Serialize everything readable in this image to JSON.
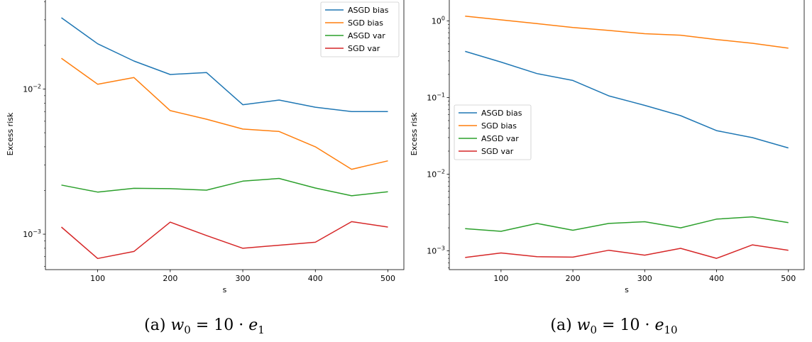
{
  "chart_data": [
    {
      "type": "line",
      "xlabel": "s",
      "ylabel": "Excess risk",
      "yscale": "log",
      "x": [
        50,
        100,
        150,
        200,
        250,
        300,
        350,
        400,
        450,
        500
      ],
      "xticks": [
        100,
        200,
        300,
        400,
        500
      ],
      "xlim": [
        28,
        522
      ],
      "ylim": [
        0.00057,
        0.042
      ],
      "yticks": [
        {
          "value": 0.01,
          "base": "10",
          "exp": "−2"
        },
        {
          "value": 0.001,
          "base": "10",
          "exp": "−3"
        }
      ],
      "legend_position": "top-right",
      "caption": {
        "label": "(a)",
        "math_prefix": "w",
        "math_sub": "0",
        "math_rest": " = 10 · ",
        "math_var": "e",
        "math_var_sub": "1"
      },
      "series": [
        {
          "name": "ASGD bias",
          "color": "#1f77b4",
          "values": [
            0.031,
            0.0205,
            0.0156,
            0.0126,
            0.013,
            0.0078,
            0.0084,
            0.0075,
            0.007,
            0.007
          ]
        },
        {
          "name": "SGD bias",
          "color": "#ff7f0e",
          "values": [
            0.0163,
            0.0108,
            0.012,
            0.0071,
            0.0062,
            0.0053,
            0.0051,
            0.004,
            0.0028,
            0.0032
          ]
        },
        {
          "name": "ASGD var",
          "color": "#2ca02c",
          "values": [
            0.00218,
            0.00195,
            0.00207,
            0.00206,
            0.00201,
            0.00232,
            0.00242,
            0.00208,
            0.00184,
            0.00196
          ]
        },
        {
          "name": "SGD var",
          "color": "#d62728",
          "values": [
            0.00112,
            0.00068,
            0.00076,
            0.00121,
            0.00098,
            0.0008,
            0.00084,
            0.00088,
            0.00122,
            0.00112
          ]
        }
      ]
    },
    {
      "type": "line",
      "xlabel": "s",
      "ylabel": "Excess risk",
      "yscale": "log",
      "x": [
        50,
        100,
        150,
        200,
        250,
        300,
        350,
        400,
        450,
        500
      ],
      "xticks": [
        100,
        200,
        300,
        400,
        500
      ],
      "xlim": [
        28,
        522
      ],
      "ylim": [
        0.00057,
        1.95
      ],
      "yticks": [
        {
          "value": 1,
          "base": "10",
          "exp": "0"
        },
        {
          "value": 0.1,
          "base": "10",
          "exp": "−1"
        },
        {
          "value": 0.01,
          "base": "10",
          "exp": "−2"
        },
        {
          "value": 0.001,
          "base": "10",
          "exp": "−3"
        }
      ],
      "legend_position": "center-left",
      "caption": {
        "label": "(a)",
        "math_prefix": "w",
        "math_sub": "0",
        "math_rest": " = 10 · ",
        "math_var": "e",
        "math_var_sub": "10"
      },
      "series": [
        {
          "name": "ASGD bias",
          "color": "#1f77b4",
          "values": [
            0.4,
            0.29,
            0.205,
            0.167,
            0.105,
            0.079,
            0.058,
            0.037,
            0.03,
            0.022
          ]
        },
        {
          "name": "SGD bias",
          "color": "#ff7f0e",
          "values": [
            1.15,
            1.03,
            0.92,
            0.82,
            0.75,
            0.68,
            0.65,
            0.57,
            0.51,
            0.44
          ]
        },
        {
          "name": "ASGD var",
          "color": "#2ca02c",
          "values": [
            0.00195,
            0.0018,
            0.00228,
            0.00186,
            0.00228,
            0.0024,
            0.002,
            0.0026,
            0.00278,
            0.00234
          ]
        },
        {
          "name": "SGD var",
          "color": "#d62728",
          "values": [
            0.00082,
            0.00094,
            0.00084,
            0.00083,
            0.00102,
            0.00088,
            0.00108,
            0.0008,
            0.0012,
            0.00102
          ]
        }
      ]
    }
  ]
}
